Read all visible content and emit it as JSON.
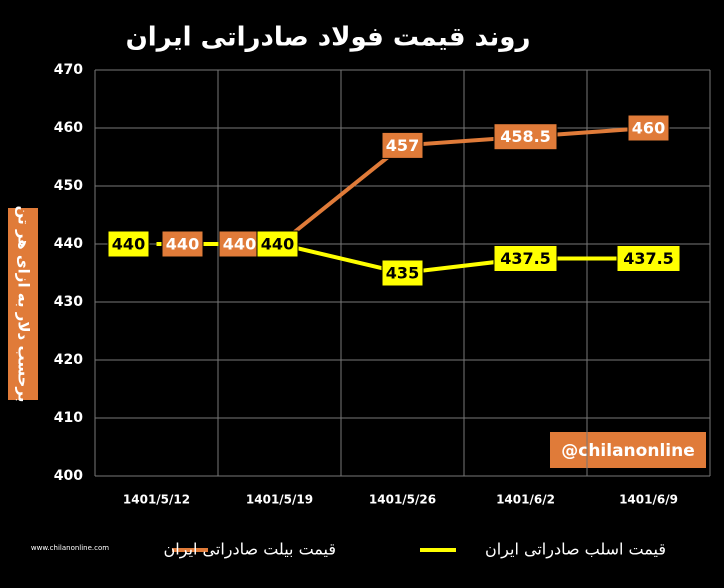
{
  "chart_data": {
    "type": "line",
    "title": "روند قیمت فولاد صادراتی ایران",
    "y_label": "برحسب دلار به ازای هر تن",
    "annotation": "@chilanonline",
    "logo_url": "www.chilanonline.com",
    "categories": [
      "1401/5/12",
      "1401/5/19",
      "1401/5/26",
      "1401/6/2",
      "1401/6/9"
    ],
    "series": [
      {
        "name": "قیمت بیلت صادراتی ایران",
        "color": "#e07b39",
        "values": [
          440,
          440,
          457,
          458.5,
          460
        ]
      },
      {
        "name": "قیمت اسلب صادراتی ایران",
        "color": "#ffff00",
        "values": [
          440,
          440,
          435,
          437.5,
          437.5
        ]
      }
    ],
    "ylim": [
      400,
      470
    ],
    "yticks": [
      400,
      410,
      420,
      430,
      440,
      450,
      460,
      470
    ],
    "grid": true
  }
}
